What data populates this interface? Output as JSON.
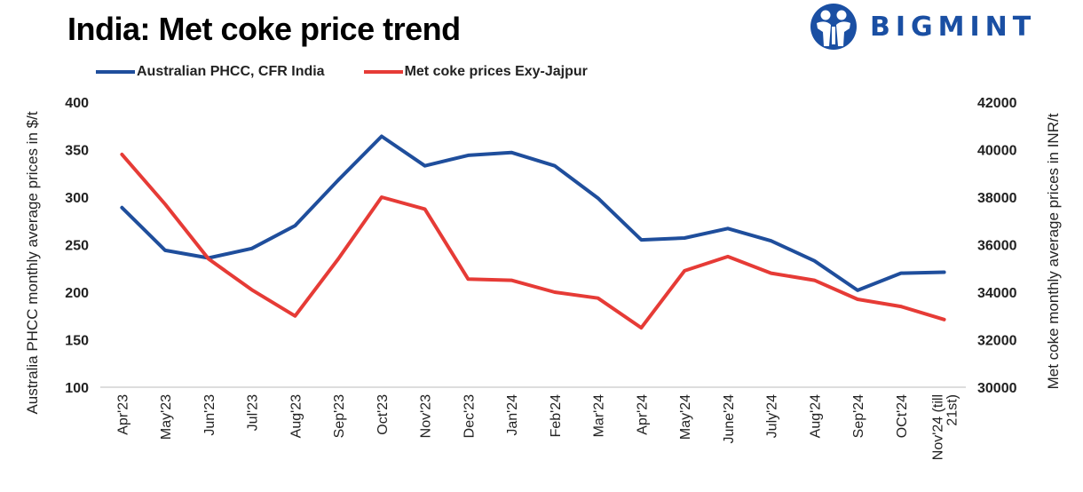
{
  "title": "India: Met coke price trend",
  "logo": {
    "text": "BIGMINT",
    "icon": "people-globe-icon",
    "color": "#1a4fa3"
  },
  "chart_data": {
    "type": "line",
    "title": "India: Met coke price trend",
    "categories": [
      "Apr'23",
      "May'23",
      "Jun'23",
      "Jul'23",
      "Aug'23",
      "Sep'23",
      "Oct'23",
      "Nov'23",
      "Dec'23",
      "Jan'24",
      "Feb'24",
      "Mar'24",
      "Apr'24",
      "May'24",
      "June'24",
      "July'24",
      "Aug'24",
      "Sep'24",
      "OCt'24",
      "Nov'24 (till 21st)"
    ],
    "ylabel": "Australia PHCC monthly average prices in $/t",
    "y2label": "Met coke monthly average prices in INR/t",
    "ylim": [
      100,
      400
    ],
    "y2lim": [
      30000,
      42000
    ],
    "yticks": [
      "100",
      "150",
      "200",
      "250",
      "300",
      "350",
      "400"
    ],
    "y2ticks": [
      "30000",
      "32000",
      "34000",
      "36000",
      "38000",
      "40000",
      "42000"
    ],
    "grid": false,
    "legend_position": "top",
    "series": [
      {
        "name": "Australian PHCC, CFR India",
        "axis": "left",
        "color": "#1f4e9c",
        "values": [
          289,
          244,
          236,
          246,
          270,
          318,
          364,
          333,
          344,
          347,
          333,
          299,
          255,
          257,
          267,
          254,
          233,
          202,
          220,
          221
        ]
      },
      {
        "name": "Met coke prices Exy-Jajpur",
        "axis": "right",
        "color": "#e63b36",
        "values": [
          39800,
          37700,
          35400,
          34100,
          33000,
          35400,
          38000,
          37500,
          34550,
          34500,
          34000,
          33750,
          32500,
          34900,
          35500,
          34800,
          34500,
          33700,
          33400,
          32850
        ]
      }
    ]
  }
}
